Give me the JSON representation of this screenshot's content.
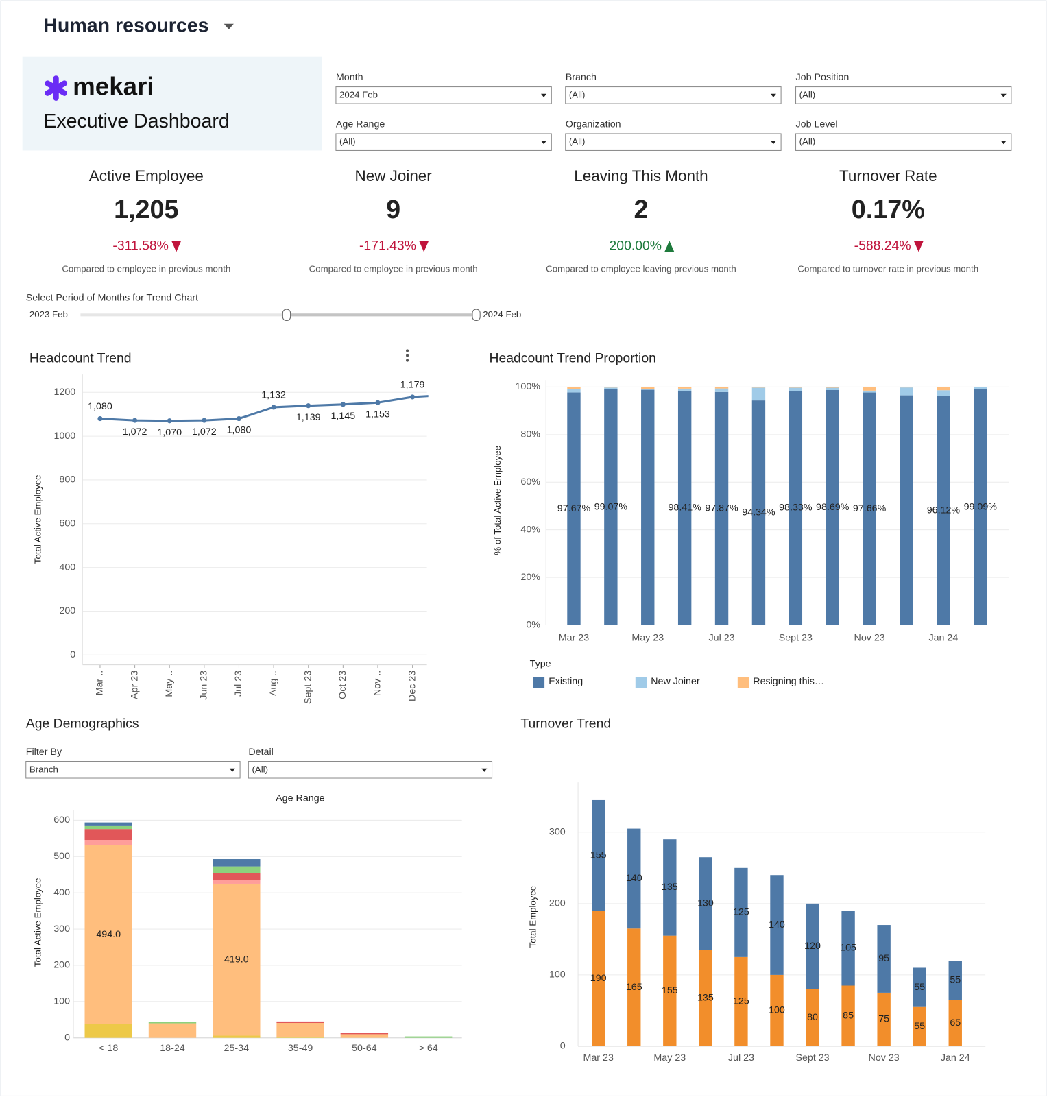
{
  "header": {
    "title": "Human resources"
  },
  "brand": {
    "name": "mekari",
    "subtitle": "Executive Dashboard"
  },
  "filters": [
    {
      "label": "Month",
      "value": "2024 Feb"
    },
    {
      "label": "Branch",
      "value": "(All)"
    },
    {
      "label": "Job Position",
      "value": "(All)"
    },
    {
      "label": "Age Range",
      "value": "(All)"
    },
    {
      "label": "Organization",
      "value": "(All)"
    },
    {
      "label": "Job Level",
      "value": "(All)"
    }
  ],
  "kpis": [
    {
      "title": "Active Employee",
      "value": "1,205",
      "change": "-311.58%",
      "direction": "down",
      "color": "#c0143c",
      "note": "Compared to employee in previous month"
    },
    {
      "title": "New Joiner",
      "value": "9",
      "change": "-171.43%",
      "direction": "down",
      "color": "#c0143c",
      "note": "Compared to employee in previous month"
    },
    {
      "title": "Leaving This Month",
      "value": "2",
      "change": "200.00%",
      "direction": "up",
      "color": "#1e7a3c",
      "note": "Compared to employee leaving previous month"
    },
    {
      "title": "Turnover Rate",
      "value": "0.17%",
      "change": "-588.24%",
      "direction": "down",
      "color": "#c0143c",
      "note": "Compared to turnover rate in previous month"
    }
  ],
  "trend_period": {
    "label": "Select Period of Months for Trend Chart",
    "start": "2023 Feb",
    "end": "2024 Feb"
  },
  "age_filters": [
    {
      "label": "Filter By",
      "value": "Branch"
    },
    {
      "label": "Detail",
      "value": "(All)"
    }
  ],
  "chart_data": [
    {
      "type": "line",
      "title": "Headcount Trend",
      "y_label": "Total Active Employee",
      "categories": [
        "Mar ..",
        "Apr 23",
        "May ..",
        "Jun 23",
        "Jul 23",
        "Aug ..",
        "Sept 23",
        "Oct 23",
        "Nov ..",
        "Dec 23",
        null
      ],
      "values": [
        1080,
        1072,
        1070,
        1072,
        1080,
        1132,
        1139,
        1145,
        1153,
        1179,
        1188
      ],
      "value_labels": [
        "1,080",
        "1,072",
        "1,070",
        "1,072",
        "1,080",
        "1,132",
        "1,139",
        "1,145",
        "1,153",
        "1,179",
        null
      ],
      "color": "#4e79a7",
      "ylim": [
        -45,
        1250
      ],
      "yticks": [
        0,
        200,
        400,
        600,
        800,
        1000,
        1200
      ],
      "grid": true
    },
    {
      "type": "bar",
      "stacked": true,
      "title": "Headcount Trend Proportion",
      "y_label": "% of Total Active Employee",
      "categories": [
        "Mar 23",
        null,
        "May 23",
        null,
        "Jul 23",
        null,
        "Sept 23",
        null,
        "Nov 23",
        null,
        "Jan 24",
        null
      ],
      "ylim": [
        0,
        100
      ],
      "yticks": [
        {
          "value": 0,
          "label": "0%"
        },
        {
          "value": 20,
          "label": "20%"
        },
        {
          "value": 40,
          "label": "40%"
        },
        {
          "value": 60,
          "label": "60%"
        },
        {
          "value": 80,
          "label": "80%"
        },
        {
          "value": 100,
          "label": "100%"
        }
      ],
      "grid": true,
      "legend_title": "Type",
      "series": [
        {
          "name": "Existing",
          "color": "#4e79a7",
          "values": [
            97.67,
            99.07,
            98.8,
            98.41,
            97.87,
            94.34,
            98.33,
            98.69,
            97.66,
            96.5,
            96.12,
            99.09
          ],
          "value_labels": [
            "97.67%",
            "99.07%",
            null,
            "98.41%",
            "97.87%",
            "94.34%",
            "98.33%",
            "98.69%",
            "97.66%",
            null,
            "96.12%",
            "99.09%"
          ]
        },
        {
          "name": "New Joiner",
          "color": "#a0cbe8",
          "values": [
            1.4,
            0.7,
            0.4,
            0.9,
            1.5,
            5.4,
            1.4,
            1.0,
            0.8,
            3.3,
            2.5,
            0.8
          ]
        },
        {
          "name": "Resigning this…",
          "color": "#ffbe7d",
          "values": [
            0.93,
            0.23,
            0.8,
            0.69,
            0.63,
            0.26,
            0.27,
            0.31,
            1.54,
            0.2,
            1.38,
            0.11
          ]
        }
      ]
    },
    {
      "type": "bar",
      "stacked": true,
      "title": "Age Demographics",
      "x_label": "Age Range",
      "y_label": "Total Active Employee",
      "categories": [
        "< 18",
        "18-24",
        "25-34",
        "35-49",
        "50-64",
        "> 64"
      ],
      "ylim": [
        0,
        610
      ],
      "yticks": [
        0,
        100,
        200,
        300,
        400,
        500,
        600
      ],
      "grid": true,
      "series": [
        {
          "color": "#edc948",
          "values": [
            38,
            0,
            6,
            3,
            0,
            0
          ]
        },
        {
          "color": "#ffbe7d",
          "values": [
            494,
            40,
            419,
            38,
            10,
            0
          ],
          "value_labels": [
            "494.0",
            null,
            "419.0",
            null,
            null,
            null
          ]
        },
        {
          "color": "#ff9d9a",
          "values": [
            14,
            0,
            10,
            0,
            0,
            0
          ]
        },
        {
          "color": "#e15759",
          "values": [
            30,
            0,
            20,
            4,
            3,
            0
          ]
        },
        {
          "color": "#8cd17d",
          "values": [
            8,
            3,
            18,
            0,
            0,
            4
          ]
        },
        {
          "color": "#4e79a7",
          "values": [
            10,
            0,
            20,
            0,
            0,
            0
          ]
        }
      ]
    },
    {
      "type": "bar",
      "stacked": true,
      "title": "Turnover Trend",
      "y_label": "Total Employee",
      "show_values": true,
      "categories": [
        "Mar 23",
        null,
        "May 23",
        null,
        "Jul 23",
        null,
        "Sept 23",
        null,
        "Nov 23",
        null,
        "Jan 24"
      ],
      "ylim": [
        0,
        360
      ],
      "yticks": [
        0,
        100,
        200,
        300
      ],
      "grid": true,
      "series": [
        {
          "color": "#f28e2b",
          "values": [
            190,
            165,
            155,
            135,
            125,
            100,
            80,
            85,
            75,
            55,
            65
          ]
        },
        {
          "color": "#4e79a7",
          "values": [
            155,
            140,
            135,
            130,
            125,
            140,
            120,
            105,
            95,
            55,
            55
          ]
        }
      ]
    }
  ]
}
